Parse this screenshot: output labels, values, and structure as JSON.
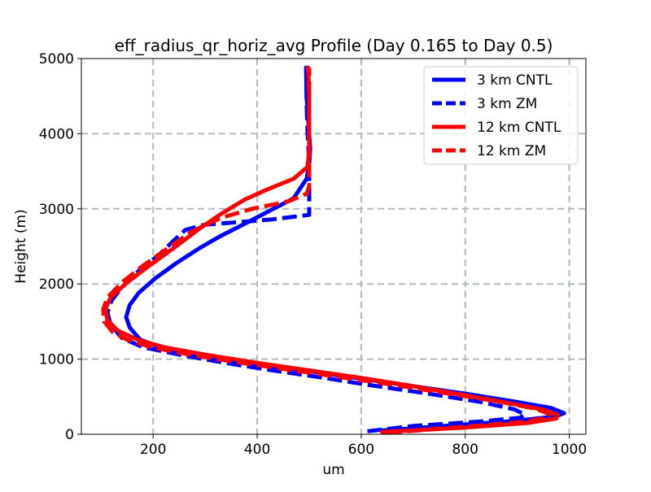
{
  "chart_data": {
    "type": "line",
    "title": "eff_radius_qr_horiz_avg Profile (Day 0.165 to Day 0.5)",
    "xlabel": "um",
    "ylabel": "Height (m)",
    "xlim": [
      62,
      1032
    ],
    "ylim": [
      0,
      5000
    ],
    "xticks": [
      200,
      400,
      600,
      800,
      1000
    ],
    "yticks": [
      0,
      1000,
      2000,
      3000,
      4000,
      5000
    ],
    "grid": true,
    "grid_style": "dashed",
    "legend_position": "upper-right",
    "series": [
      {
        "name": "3 km CNTL",
        "color": "#0000ff",
        "dash": "solid",
        "points": [
          [
            640,
            50
          ],
          [
            780,
            120
          ],
          [
            900,
            180
          ],
          [
            975,
            240
          ],
          [
            990,
            280
          ],
          [
            965,
            350
          ],
          [
            900,
            430
          ],
          [
            800,
            540
          ],
          [
            700,
            640
          ],
          [
            600,
            740
          ],
          [
            500,
            840
          ],
          [
            400,
            930
          ],
          [
            300,
            1040
          ],
          [
            220,
            1140
          ],
          [
            175,
            1260
          ],
          [
            155,
            1420
          ],
          [
            148,
            1560
          ],
          [
            155,
            1720
          ],
          [
            172,
            1880
          ],
          [
            205,
            2080
          ],
          [
            245,
            2280
          ],
          [
            290,
            2480
          ],
          [
            330,
            2640
          ],
          [
            370,
            2780
          ],
          [
            420,
            2960
          ],
          [
            470,
            3140
          ],
          [
            495,
            3400
          ],
          [
            500,
            3600
          ],
          [
            502,
            3800
          ],
          [
            498,
            4200
          ],
          [
            495,
            4500
          ],
          [
            494,
            4880
          ]
        ]
      },
      {
        "name": "3 km ZM",
        "color": "#0000ff",
        "dash": "dashed",
        "points": [
          [
            612,
            40
          ],
          [
            700,
            110
          ],
          [
            830,
            170
          ],
          [
            905,
            220
          ],
          [
            915,
            260
          ],
          [
            895,
            330
          ],
          [
            830,
            430
          ],
          [
            730,
            540
          ],
          [
            620,
            650
          ],
          [
            520,
            760
          ],
          [
            420,
            860
          ],
          [
            330,
            960
          ],
          [
            250,
            1060
          ],
          [
            180,
            1160
          ],
          [
            140,
            1280
          ],
          [
            118,
            1460
          ],
          [
            112,
            1620
          ],
          [
            120,
            1780
          ],
          [
            138,
            1940
          ],
          [
            170,
            2160
          ],
          [
            210,
            2380
          ],
          [
            240,
            2580
          ],
          [
            262,
            2720
          ],
          [
            300,
            2790
          ],
          [
            360,
            2820
          ],
          [
            430,
            2860
          ],
          [
            500,
            2920
          ],
          [
            500,
            3200
          ],
          [
            500,
            3600
          ],
          [
            497,
            4000
          ],
          [
            495,
            4400
          ],
          [
            495,
            4880
          ]
        ]
      },
      {
        "name": "12 km CNTL",
        "color": "#ff0000",
        "dash": "solid",
        "points": [
          [
            640,
            30
          ],
          [
            800,
            90
          ],
          [
            920,
            150
          ],
          [
            975,
            210
          ],
          [
            978,
            260
          ],
          [
            948,
            330
          ],
          [
            880,
            420
          ],
          [
            800,
            520
          ],
          [
            700,
            640
          ],
          [
            600,
            750
          ],
          [
            500,
            850
          ],
          [
            400,
            950
          ],
          [
            300,
            1060
          ],
          [
            220,
            1160
          ],
          [
            170,
            1260
          ],
          [
            132,
            1380
          ],
          [
            112,
            1520
          ],
          [
            108,
            1660
          ],
          [
            118,
            1820
          ],
          [
            150,
            2020
          ],
          [
            192,
            2240
          ],
          [
            240,
            2480
          ],
          [
            290,
            2740
          ],
          [
            330,
            2930
          ],
          [
            375,
            3120
          ],
          [
            420,
            3260
          ],
          [
            470,
            3400
          ],
          [
            497,
            3560
          ],
          [
            500,
            3800
          ],
          [
            500,
            4200
          ],
          [
            500,
            4500
          ],
          [
            498,
            4880
          ]
        ]
      },
      {
        "name": "12 km ZM",
        "color": "#ff0000",
        "dash": "dashed",
        "points": [
          [
            650,
            20
          ],
          [
            780,
            90
          ],
          [
            905,
            160
          ],
          [
            958,
            220
          ],
          [
            962,
            270
          ],
          [
            935,
            340
          ],
          [
            860,
            440
          ],
          [
            760,
            550
          ],
          [
            660,
            660
          ],
          [
            560,
            760
          ],
          [
            460,
            860
          ],
          [
            360,
            960
          ],
          [
            270,
            1060
          ],
          [
            195,
            1160
          ],
          [
            150,
            1260
          ],
          [
            122,
            1360
          ],
          [
            106,
            1500
          ],
          [
            104,
            1660
          ],
          [
            112,
            1820
          ],
          [
            140,
            2020
          ],
          [
            180,
            2240
          ],
          [
            225,
            2460
          ],
          [
            275,
            2700
          ],
          [
            330,
            2880
          ],
          [
            390,
            3000
          ],
          [
            460,
            3100
          ],
          [
            495,
            3200
          ],
          [
            500,
            3300
          ],
          [
            500,
            3600
          ],
          [
            500,
            4000
          ],
          [
            500,
            4400
          ],
          [
            500,
            4880
          ]
        ]
      }
    ]
  }
}
